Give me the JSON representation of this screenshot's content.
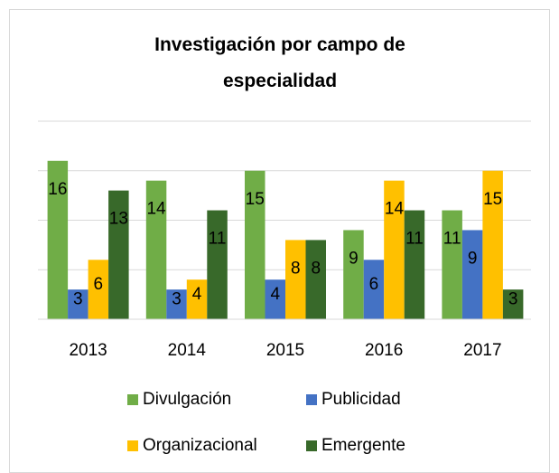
{
  "chart_data": {
    "type": "bar",
    "title": "Investigación por campo de especialidad",
    "categories": [
      "2013",
      "2014",
      "2015",
      "2016",
      "2017"
    ],
    "series": [
      {
        "name": "Divulgación",
        "color": "#70ad47",
        "values": [
          16,
          14,
          15,
          9,
          11
        ]
      },
      {
        "name": "Publicidad",
        "color": "#4472c4",
        "values": [
          3,
          3,
          4,
          6,
          9
        ]
      },
      {
        "name": "Organizacional",
        "color": "#ffc000",
        "values": [
          6,
          4,
          8,
          14,
          15
        ]
      },
      {
        "name": "Emergente",
        "color": "#38692a",
        "values": [
          13,
          11,
          8,
          11,
          3
        ]
      }
    ],
    "ylim": [
      0,
      20
    ],
    "yticks": [
      0,
      5,
      10,
      15,
      20
    ],
    "grid": true,
    "legend": "bottom"
  }
}
